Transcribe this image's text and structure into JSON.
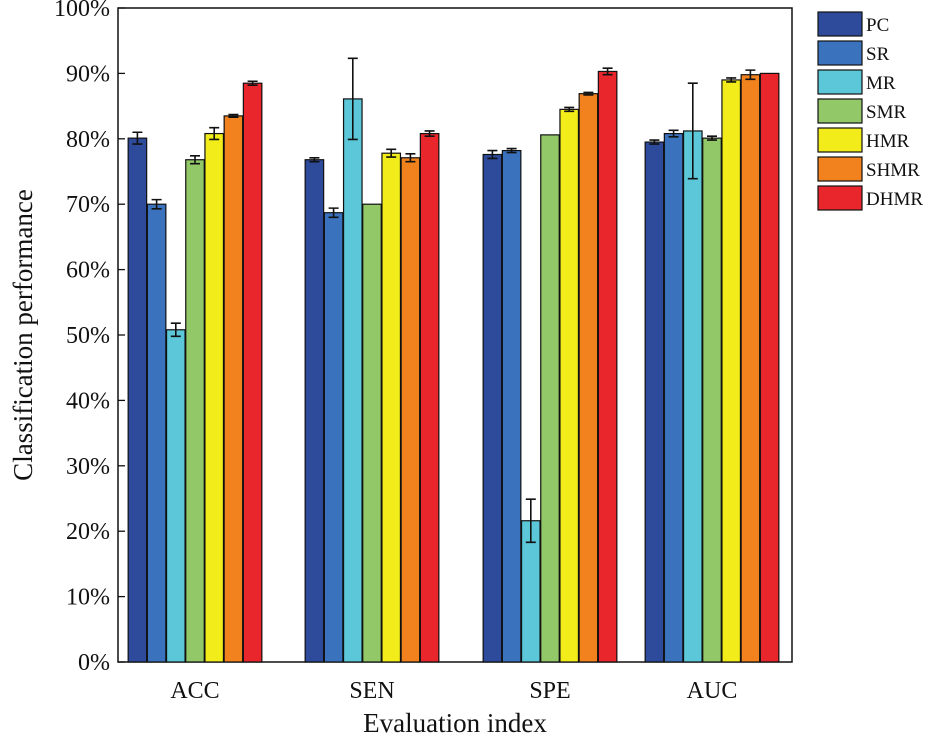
{
  "chart_data": {
    "type": "bar",
    "title": "",
    "xlabel": "Evaluation index",
    "ylabel": "Classification performance",
    "ylim": [
      0,
      100
    ],
    "yticks": [
      "0%",
      "10%",
      "20%",
      "30%",
      "40%",
      "50%",
      "60%",
      "70%",
      "80%",
      "90%",
      "100%"
    ],
    "categories": [
      "ACC",
      "SEN",
      "SPE",
      "AUC"
    ],
    "legend_position": "outside-top-right",
    "series": [
      {
        "name": "PC",
        "color": "#2E4A9B",
        "values": [
          80.1,
          76.8,
          77.6,
          79.5
        ],
        "errors": [
          0.9,
          0.3,
          0.6,
          0.3
        ]
      },
      {
        "name": "SR",
        "color": "#3A72BE",
        "values": [
          70.0,
          68.7,
          78.2,
          80.8
        ],
        "errors": [
          0.7,
          0.7,
          0.3,
          0.5
        ]
      },
      {
        "name": "MR",
        "color": "#5BC7D9",
        "values": [
          50.8,
          86.1,
          21.6,
          81.2
        ],
        "errors": [
          1.0,
          6.2,
          3.3,
          7.3
        ]
      },
      {
        "name": "SMR",
        "color": "#93C869",
        "values": [
          76.8,
          70.0,
          80.6,
          80.1
        ],
        "errors": [
          0.6,
          0.1,
          0.1,
          0.3
        ]
      },
      {
        "name": "HMR",
        "color": "#F2EC1B",
        "values": [
          80.8,
          77.8,
          84.5,
          89.0
        ],
        "errors": [
          0.9,
          0.6,
          0.3,
          0.3
        ]
      },
      {
        "name": "SHMR",
        "color": "#F2821E",
        "values": [
          83.5,
          77.1,
          86.9,
          89.8
        ],
        "errors": [
          0.2,
          0.6,
          0.2,
          0.7
        ]
      },
      {
        "name": "DHMR",
        "color": "#E8262B",
        "values": [
          88.5,
          80.8,
          90.3,
          90.0
        ],
        "errors": [
          0.3,
          0.4,
          0.5,
          0.1
        ]
      }
    ]
  }
}
